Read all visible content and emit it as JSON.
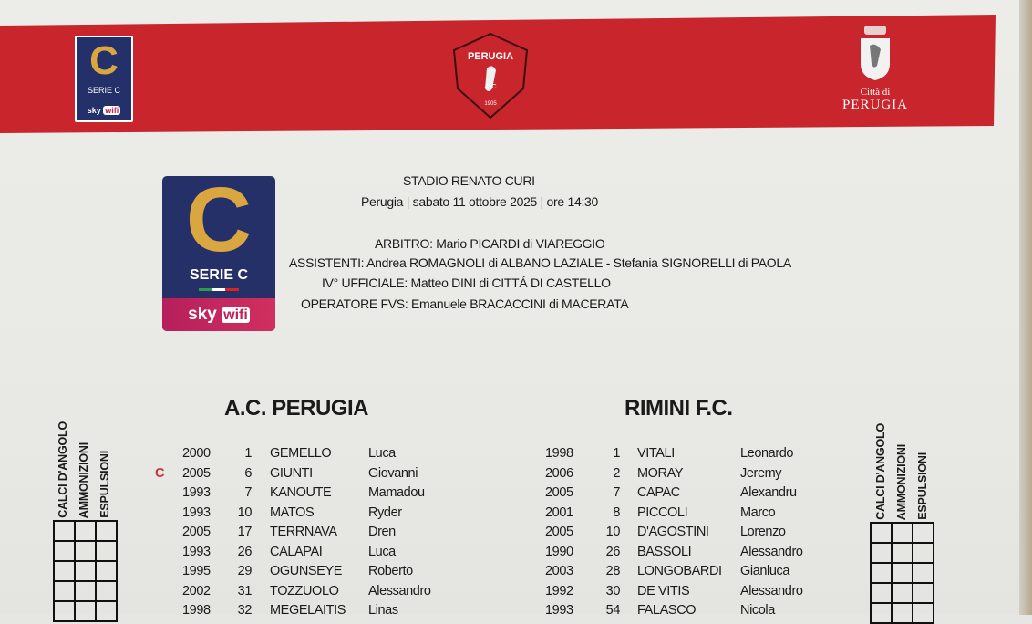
{
  "header": {
    "league_logo": {
      "title": "C",
      "subtitle": "SERIE C",
      "sponsor_sky": "sky",
      "sponsor_wifi": "wifi"
    },
    "club_crest": {
      "name": "PERUGIA",
      "letters": "A  C",
      "year": "1905"
    },
    "city_logo": {
      "line1": "Città di",
      "line2": "PERUGIA"
    },
    "band_color": "#c9252c"
  },
  "match": {
    "stadium": "STADIO RENATO CURI",
    "details": "Perugia | sabato 11 ottobre 2025 | ore 14:30",
    "officials": [
      "ARBITRO: Mario PICARDI di VIAREGGIO",
      "ASSISTENTI: Andrea ROMAGNOLI di ALBANO LAZIALE - Stefania SIGNORELLI di PAOLA",
      "IV° UFFICIALE: Matteo DINI di CITTÁ DI CASTELLO",
      "OPERATORE FVS: Emanuele BRACACCINI di MACERATA"
    ]
  },
  "stats_columns": [
    "CALCI D'ANGOLO",
    "AMMONIZIONI",
    "ESPULSIONI"
  ],
  "home": {
    "name": "A.C. PERUGIA",
    "captain_mark": "C",
    "players": [
      {
        "year": "2000",
        "number": "1",
        "surname": "GEMELLO",
        "name": "Luca"
      },
      {
        "year": "2005",
        "number": "6",
        "surname": "GIUNTI",
        "name": "Giovanni",
        "captain": true
      },
      {
        "year": "1993",
        "number": "7",
        "surname": "KANOUTE",
        "name": "Mamadou"
      },
      {
        "year": "1993",
        "number": "10",
        "surname": "MATOS",
        "name": "Ryder"
      },
      {
        "year": "2005",
        "number": "17",
        "surname": "TERRNAVA",
        "name": "Dren"
      },
      {
        "year": "1993",
        "number": "26",
        "surname": "CALAPAI",
        "name": "Luca"
      },
      {
        "year": "1995",
        "number": "29",
        "surname": "OGUNSEYE",
        "name": "Roberto"
      },
      {
        "year": "2002",
        "number": "31",
        "surname": "TOZZUOLO",
        "name": "Alessandro"
      },
      {
        "year": "1998",
        "number": "32",
        "surname": "MEGELAITIS",
        "name": "Linas"
      }
    ]
  },
  "away": {
    "name": "RIMINI F.C.",
    "players": [
      {
        "year": "1998",
        "number": "1",
        "surname": "VITALI",
        "name": "Leonardo"
      },
      {
        "year": "2006",
        "number": "2",
        "surname": "MORAY",
        "name": "Jeremy"
      },
      {
        "year": "2005",
        "number": "7",
        "surname": "CAPAC",
        "name": "Alexandru"
      },
      {
        "year": "2001",
        "number": "8",
        "surname": "PICCOLI",
        "name": "Marco"
      },
      {
        "year": "2005",
        "number": "10",
        "surname": "D'AGOSTINI",
        "name": "Lorenzo"
      },
      {
        "year": "1990",
        "number": "26",
        "surname": "BASSOLI",
        "name": "Alessandro"
      },
      {
        "year": "2003",
        "number": "28",
        "surname": "LONGOBARDI",
        "name": "Gianluca"
      },
      {
        "year": "1992",
        "number": "30",
        "surname": "DE VITIS",
        "name": "Alessandro"
      },
      {
        "year": "1993",
        "number": "54",
        "surname": "FALASCO",
        "name": "Nicola"
      }
    ]
  }
}
